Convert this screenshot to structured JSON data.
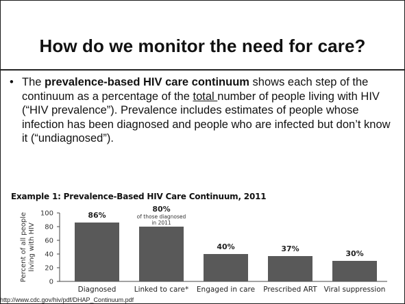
{
  "slide": {
    "title": "How do we monitor the need for care?",
    "bullet_marker": "•",
    "bullet_parts": {
      "p1": "The ",
      "bold": "prevalence-based HIV care continuum",
      "p2": " shows each step of the continuum as a percentage of the ",
      "underlined": "total ",
      "p3": "number of people living with HIV (“HIV prevalence”). Prevalence includes estimates of people whose infection has been diagnosed and people who are infected but don’t know it (“undiagnosed”)."
    },
    "source": "http://www.cdc.gov/hiv/pdf/DHAP_Continuum.pdf"
  },
  "chart_data": {
    "type": "bar",
    "title": "Example 1: Prevalence-Based HIV Care Continuum, 2011",
    "ylabel": [
      "Percent of all people",
      "living with HIV"
    ],
    "xlabel": "",
    "ylim": [
      0,
      100
    ],
    "yticks": [
      "0",
      "20",
      "40",
      "60",
      "80",
      "100"
    ],
    "categories": [
      "Diagnosed",
      "Linked to care*",
      "Engaged in care",
      "Prescribed ART",
      "Viral suppression"
    ],
    "values": [
      86,
      80,
      40,
      37,
      30
    ],
    "value_labels": [
      "86%",
      "80%",
      "40%",
      "37%",
      "30%"
    ],
    "annotations": [
      "",
      "of those diagnosed",
      "",
      "",
      ""
    ],
    "annotations2": [
      "",
      "in 2011",
      "",
      "",
      ""
    ],
    "bar_color": "#595959",
    "grid": false
  }
}
